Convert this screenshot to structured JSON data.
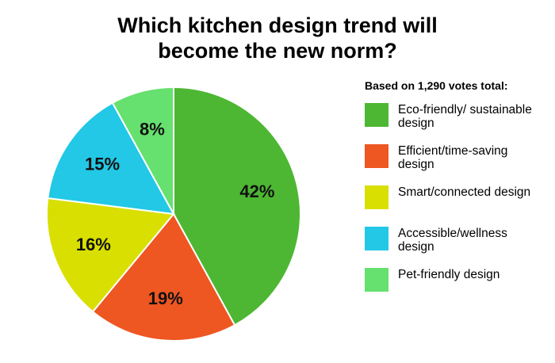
{
  "chart_data": {
    "type": "pie",
    "title": "Which kitchen design trend will become the new norm?",
    "legend_title": "Based on 1,290 votes total:",
    "categories": [
      "Eco-friendly/ sustainable design",
      "Efficient/time-saving design",
      "Smart/connected design",
      "Accessible/wellness design",
      "Pet-friendly design"
    ],
    "values": [
      42,
      19,
      16,
      15,
      8
    ],
    "value_labels": [
      "42%",
      "19%",
      "16%",
      "15%",
      "8%"
    ],
    "colors": [
      "#4db733",
      "#ee5622",
      "#d9df00",
      "#22c8e5",
      "#66e06e"
    ],
    "legend": "right"
  }
}
